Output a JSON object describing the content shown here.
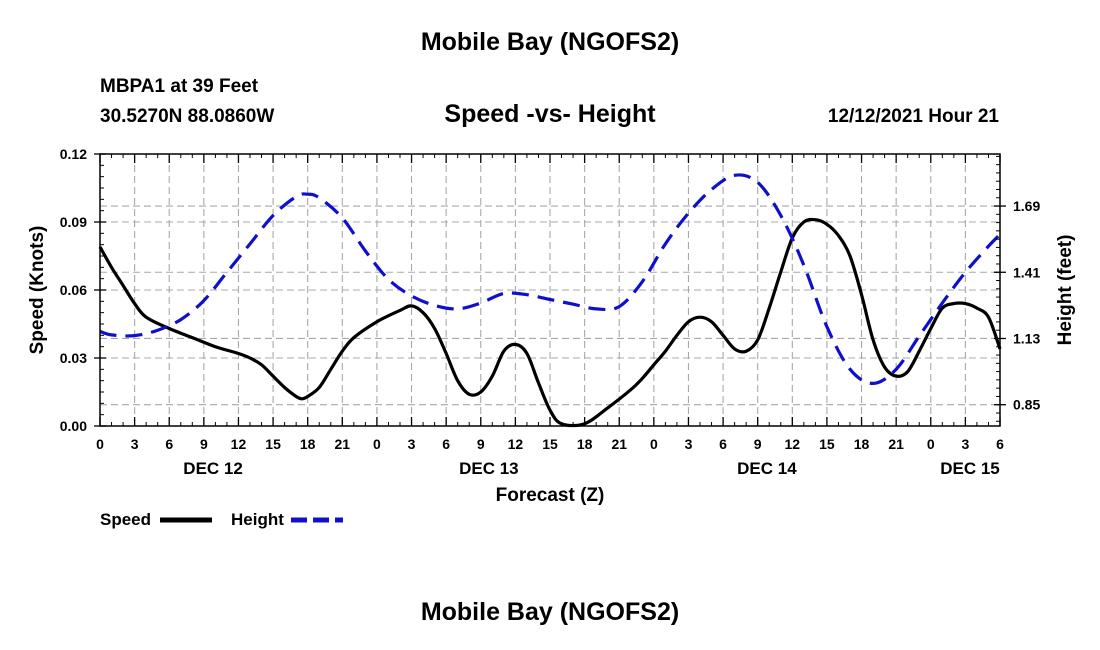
{
  "header": {
    "title": "Mobile Bay (NGOFS2)",
    "station": "MBPA1 at 39 Feet",
    "coords": "30.5270N  88.0860W",
    "subtitle": "Speed -vs- Height",
    "datetime": "12/12/2021 Hour 21"
  },
  "footer": {
    "title": "Mobile Bay (NGOFS2)"
  },
  "chart_data": {
    "type": "line",
    "title": "Speed -vs- Height",
    "xlabel": "Forecast (Z)",
    "ylabel": "Speed (Knots)",
    "y2label": "Height (feet)",
    "xlim": [
      0,
      78
    ],
    "ylim": [
      0,
      0.12
    ],
    "y2lim": [
      0.76,
      1.91
    ],
    "grid": true,
    "x_tick_values": [
      0,
      3,
      6,
      9,
      12,
      15,
      18,
      21,
      24,
      27,
      30,
      33,
      36,
      39,
      42,
      45,
      48,
      51,
      54,
      57,
      60,
      63,
      66,
      69,
      72,
      75,
      78
    ],
    "x_tick_labels": [
      "0",
      "3",
      "6",
      "9",
      "12",
      "15",
      "18",
      "21",
      "0",
      "3",
      "6",
      "9",
      "12",
      "15",
      "18",
      "21",
      "0",
      "3",
      "6",
      "9",
      "12",
      "15",
      "18",
      "21",
      "0",
      "3",
      "6"
    ],
    "day_labels": [
      {
        "label": "DEC 12",
        "x": 9.8
      },
      {
        "label": "DEC 13",
        "x": 33.7
      },
      {
        "label": "DEC 14",
        "x": 57.8
      },
      {
        "label": "DEC 15",
        "x": 75.4
      }
    ],
    "y_ticks": [
      "0.00",
      "0.03",
      "0.06",
      "0.09",
      "0.12"
    ],
    "y_tick_values": [
      0,
      0.03,
      0.06,
      0.09,
      0.12
    ],
    "y2_ticks": [
      "0.85",
      "1.13",
      "1.41",
      "1.69"
    ],
    "y2_tick_values": [
      0.85,
      1.13,
      1.41,
      1.69
    ],
    "series": [
      {
        "name": "Speed",
        "axis": "left",
        "color": "#000000",
        "dash": "solid",
        "x": [
          0,
          1,
          2,
          3,
          4,
          6,
          8,
          10,
          12,
          13,
          14,
          15,
          16,
          17,
          17.5,
          18,
          19,
          20,
          21,
          22,
          24,
          26,
          27,
          28,
          29,
          30,
          31,
          32,
          33,
          34,
          35,
          36,
          37,
          38,
          39,
          40,
          42,
          44,
          46,
          47,
          48,
          49,
          50,
          51,
          52,
          53,
          54,
          55,
          56,
          57,
          58,
          59,
          60,
          61,
          62,
          63,
          64,
          65,
          66,
          67,
          68,
          69,
          70,
          71,
          72,
          73,
          74,
          75,
          76,
          77,
          78
        ],
        "values": [
          0.079,
          0.07,
          0.062,
          0.054,
          0.048,
          0.043,
          0.039,
          0.035,
          0.032,
          0.03,
          0.027,
          0.022,
          0.017,
          0.013,
          0.012,
          0.013,
          0.017,
          0.025,
          0.033,
          0.039,
          0.046,
          0.051,
          0.053,
          0.05,
          0.043,
          0.032,
          0.02,
          0.014,
          0.015,
          0.022,
          0.033,
          0.036,
          0.032,
          0.019,
          0.007,
          0.001,
          0.001,
          0.008,
          0.016,
          0.021,
          0.027,
          0.033,
          0.04,
          0.046,
          0.048,
          0.046,
          0.04,
          0.034,
          0.033,
          0.038,
          0.052,
          0.068,
          0.083,
          0.09,
          0.091,
          0.089,
          0.084,
          0.075,
          0.058,
          0.038,
          0.026,
          0.022,
          0.024,
          0.033,
          0.043,
          0.052,
          0.054,
          0.054,
          0.052,
          0.048,
          0.034
        ]
      },
      {
        "name": "Height",
        "axis": "right",
        "color": "#1010cc",
        "dash": "dashed",
        "x": [
          0,
          1,
          3,
          5,
          7,
          9,
          11,
          13,
          15,
          17,
          18,
          19,
          21,
          23,
          25,
          27,
          29,
          31,
          33,
          35,
          37,
          39,
          41,
          43,
          45,
          47,
          49,
          51,
          53,
          55,
          57,
          59,
          61,
          63,
          65,
          67,
          69,
          71,
          73,
          75,
          77,
          78
        ],
        "values": [
          1.16,
          1.145,
          1.142,
          1.165,
          1.21,
          1.29,
          1.41,
          1.53,
          1.65,
          1.73,
          1.74,
          1.725,
          1.64,
          1.5,
          1.38,
          1.31,
          1.27,
          1.255,
          1.28,
          1.32,
          1.315,
          1.295,
          1.275,
          1.255,
          1.265,
          1.37,
          1.53,
          1.66,
          1.76,
          1.82,
          1.79,
          1.65,
          1.44,
          1.18,
          1.0,
          0.94,
          1.0,
          1.14,
          1.28,
          1.41,
          1.52,
          1.57
        ]
      }
    ],
    "legend": [
      {
        "label": "Speed",
        "color": "#000000",
        "dash": "solid"
      },
      {
        "label": "Height",
        "color": "#1010cc",
        "dash": "dashed"
      }
    ],
    "legend_position": "bottom-left"
  }
}
